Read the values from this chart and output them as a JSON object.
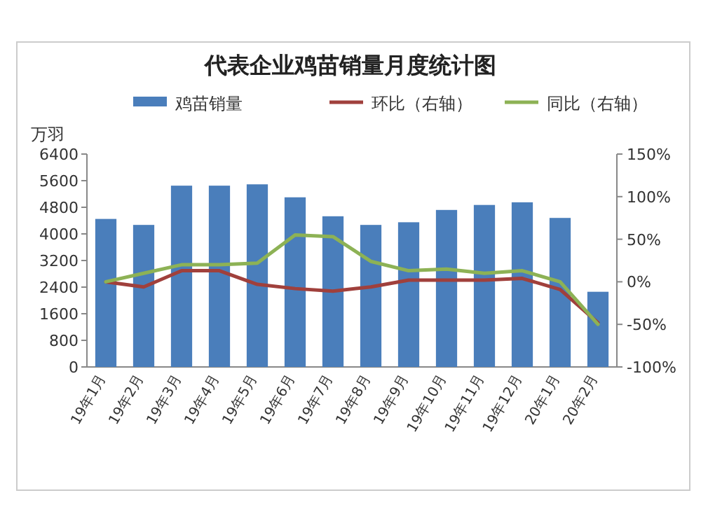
{
  "chart_data": {
    "type": "bar",
    "title": "代表企业鸡苗销量月度统计图",
    "ylabel": "万羽",
    "categories": [
      "19年1月",
      "19年2月",
      "19年3月",
      "19年4月",
      "19年5月",
      "19年6月",
      "19年7月",
      "19年8月",
      "19年9月",
      "19年10月",
      "19年11月",
      "19年12月",
      "20年1月",
      "20年2月"
    ],
    "series": [
      {
        "name": "鸡苗销量",
        "color": "#4a7ebb",
        "values": [
          4450,
          4270,
          5450,
          5450,
          5490,
          5100,
          4530,
          4270,
          4350,
          4720,
          4870,
          4950,
          4480,
          2260
        ]
      },
      {
        "name": "环比（右轴）",
        "type": "line",
        "axis": "y2",
        "color": "#a0403c",
        "values": [
          0,
          -6,
          13,
          13,
          -3,
          -8,
          -11,
          -6,
          2,
          2,
          2,
          4,
          -9,
          -48
        ]
      },
      {
        "name": "同比（右轴）",
        "type": "line",
        "axis": "y2",
        "color": "#8db255",
        "values": [
          0,
          10,
          20,
          20,
          22,
          55,
          53,
          24,
          13,
          15,
          10,
          13,
          0,
          -50
        ]
      }
    ],
    "ylim": [
      0,
      6400
    ],
    "yticks": [
      0,
      800,
      1600,
      2400,
      3200,
      4000,
      4800,
      5600,
      6400
    ],
    "y2lim": [
      -100,
      150
    ],
    "y2ticks": [
      {
        "value": -100,
        "label": "-100%"
      },
      {
        "value": -50,
        "label": "-50%"
      },
      {
        "value": 0,
        "label": "0%"
      },
      {
        "value": 50,
        "label": "50%"
      },
      {
        "value": 100,
        "label": "100%"
      },
      {
        "value": 150,
        "label": "150%"
      }
    ],
    "legend": "top",
    "grid": false,
    "marker": "none",
    "line_style": "solid"
  }
}
